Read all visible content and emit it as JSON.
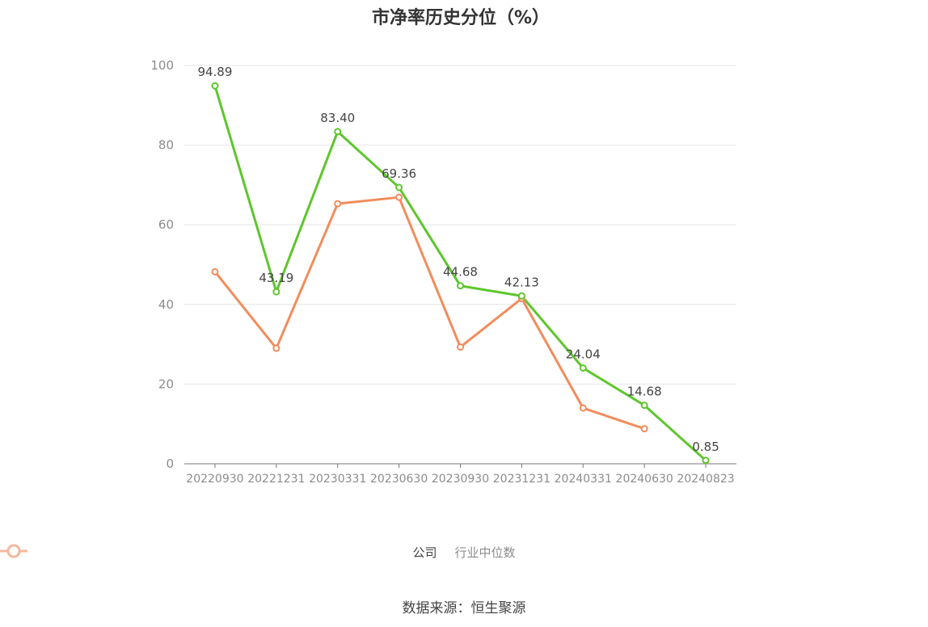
{
  "chart_data": {
    "type": "line",
    "title": "市净率历史分位（%）",
    "categories": [
      "20220930",
      "20221231",
      "20230331",
      "20230630",
      "20230930",
      "20231231",
      "20240331",
      "20240630",
      "20240823"
    ],
    "series": [
      {
        "name": "公司",
        "color": "#5dc62c",
        "values": [
          94.89,
          43.19,
          83.4,
          69.36,
          44.68,
          42.13,
          24.04,
          14.68,
          0.85
        ],
        "labels": [
          "94.89",
          "43.19",
          "83.40",
          "69.36",
          "44.68",
          "42.13",
          "24.04",
          "14.68",
          "0.85"
        ]
      },
      {
        "name": "行业中位数",
        "color": "#f28c5c",
        "values": [
          48.2,
          29.0,
          65.3,
          66.9,
          29.3,
          41.5,
          14.0,
          8.8,
          null
        ]
      }
    ],
    "ylim": [
      0,
      100
    ],
    "yticks": [
      0,
      20,
      40,
      60,
      80,
      100
    ],
    "grid": true,
    "legend": "bottom-center"
  },
  "source": "数据来源：恒生聚源"
}
